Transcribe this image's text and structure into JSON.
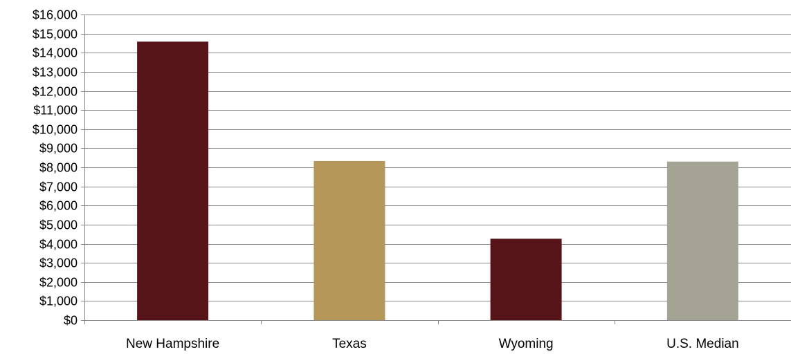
{
  "chart_data": {
    "type": "bar",
    "title": "",
    "xlabel": "",
    "ylabel": "",
    "categories": [
      "New Hampshire",
      "Texas",
      "Wyoming",
      "U.S. Median"
    ],
    "values": [
      14580,
      8330,
      4260,
      8300
    ],
    "bar_colors": [
      "#561419",
      "#B6975A",
      "#561419",
      "#A4A394"
    ],
    "ylim": [
      0,
      16000
    ],
    "ytick_step": 1000,
    "ytick_labels": [
      "$0",
      "$1,000",
      "$2,000",
      "$3,000",
      "$4,000",
      "$5,000",
      "$6,000",
      "$7,000",
      "$8,000",
      "$9,000",
      "$10,000",
      "$11,000",
      "$12,000",
      "$13,000",
      "$14,000",
      "$15,000",
      "$16,000"
    ],
    "grid": true,
    "legend": "none",
    "gridline_color": "#868686"
  }
}
